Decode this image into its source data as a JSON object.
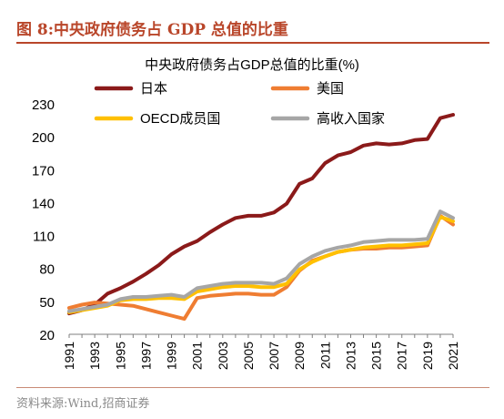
{
  "figure_label": "图 8:中央政府债务占 GDP 总值的比重",
  "source_note": "资料来源:Wind,招商证券",
  "colors": {
    "header_accent": "#b9462a",
    "japan": "#8b1a1a",
    "usa": "#ef7d32",
    "oecd": "#ffc000",
    "high_income": "#a6a6a6"
  },
  "chart_data": {
    "type": "line",
    "title": "中央政府债务占GDP总值的比重(%)",
    "xlabel": "",
    "ylabel": "",
    "xlim": [
      1991,
      2021
    ],
    "ylim": [
      20,
      230
    ],
    "yticks": [
      20,
      50,
      80,
      110,
      140,
      170,
      200,
      230
    ],
    "xticks": [
      1991,
      1993,
      1995,
      1997,
      1999,
      2001,
      2003,
      2005,
      2007,
      2009,
      2011,
      2013,
      2015,
      2017,
      2019,
      2021
    ],
    "grid": false,
    "legend_position": "top-left",
    "x": [
      1991,
      1992,
      1993,
      1994,
      1995,
      1996,
      1997,
      1998,
      1999,
      2000,
      2001,
      2002,
      2003,
      2004,
      2005,
      2006,
      2007,
      2008,
      2009,
      2010,
      2011,
      2012,
      2013,
      2014,
      2015,
      2016,
      2017,
      2018,
      2019,
      2020,
      2021
    ],
    "series": [
      {
        "name": "日本",
        "color_key": "japan",
        "values": [
          39,
          42,
          47,
          57,
          62,
          68,
          75,
          83,
          93,
          100,
          105,
          113,
          120,
          126,
          128,
          128,
          131,
          139,
          157,
          162,
          176,
          183,
          186,
          192,
          194,
          193,
          194,
          197,
          198,
          217,
          220
        ]
      },
      {
        "name": "美国",
        "color_key": "usa",
        "values": [
          44,
          47,
          49,
          48,
          47,
          46,
          43,
          40,
          37,
          34,
          53,
          55,
          56,
          57,
          57,
          56,
          56,
          63,
          78,
          87,
          91,
          95,
          97,
          98,
          98,
          99,
          99,
          100,
          101,
          128,
          120
        ]
      },
      {
        "name": "OECD成员国",
        "color_key": "oecd",
        "values": [
          40,
          42,
          44,
          46,
          51,
          52,
          52,
          53,
          53,
          52,
          59,
          61,
          63,
          64,
          64,
          63,
          63,
          66,
          79,
          86,
          91,
          95,
          97,
          99,
          100,
          101,
          101,
          102,
          103,
          127,
          123
        ]
      },
      {
        "name": "高收入国家",
        "color_key": "high_income",
        "values": [
          41,
          43,
          45,
          47,
          52,
          54,
          54,
          55,
          56,
          54,
          62,
          64,
          66,
          67,
          67,
          67,
          66,
          71,
          84,
          91,
          96,
          99,
          101,
          104,
          105,
          106,
          106,
          106,
          107,
          132,
          126
        ]
      }
    ]
  }
}
